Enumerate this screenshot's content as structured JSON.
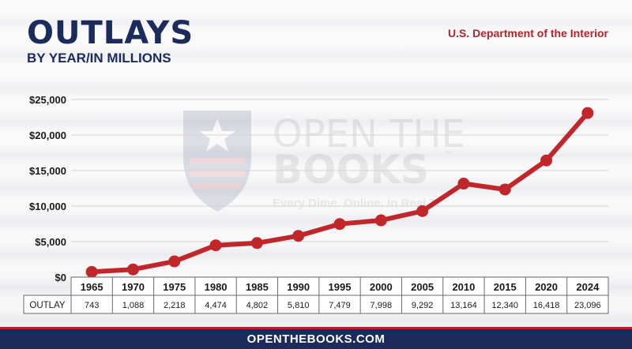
{
  "header": {
    "title": "OUTLAYS",
    "subtitle": "BY YEAR/IN MILLIONS",
    "agency": "U.S. Department of the Interior"
  },
  "watermark": {
    "line1": "OPEN THE",
    "line2": "BOOKS",
    "tagline": "Every Dime. Online. In Real Ti",
    "tm": "™"
  },
  "footer": {
    "url": "OPENTHEBOOKS.COM"
  },
  "table": {
    "row_label": "OUTLAY"
  },
  "colors": {
    "navy": "#1b2b5c",
    "red": "#b82225",
    "line": "#c0272b"
  },
  "chart_data": {
    "type": "line",
    "categories": [
      "1965",
      "1970",
      "1975",
      "1980",
      "1985",
      "1990",
      "1995",
      "2000",
      "2005",
      "2010",
      "2015",
      "2020",
      "2024"
    ],
    "values": [
      743,
      1088,
      2218,
      4474,
      4802,
      5810,
      7479,
      7998,
      9292,
      13164,
      12340,
      16418,
      23096
    ],
    "value_labels": [
      "743",
      "1,088",
      "2,218",
      "4,474",
      "4,802",
      "5,810",
      "7,479",
      "7,998",
      "9,292",
      "13,164",
      "12,340",
      "16,418",
      "23,096"
    ],
    "y_ticks": [
      0,
      5000,
      10000,
      15000,
      20000,
      25000
    ],
    "y_tick_labels": [
      "$0",
      "$5,000",
      "$10,000",
      "$15,000",
      "$20,000",
      "$25,000"
    ],
    "ylim": [
      0,
      25000
    ],
    "grid": true,
    "legend": "none"
  }
}
